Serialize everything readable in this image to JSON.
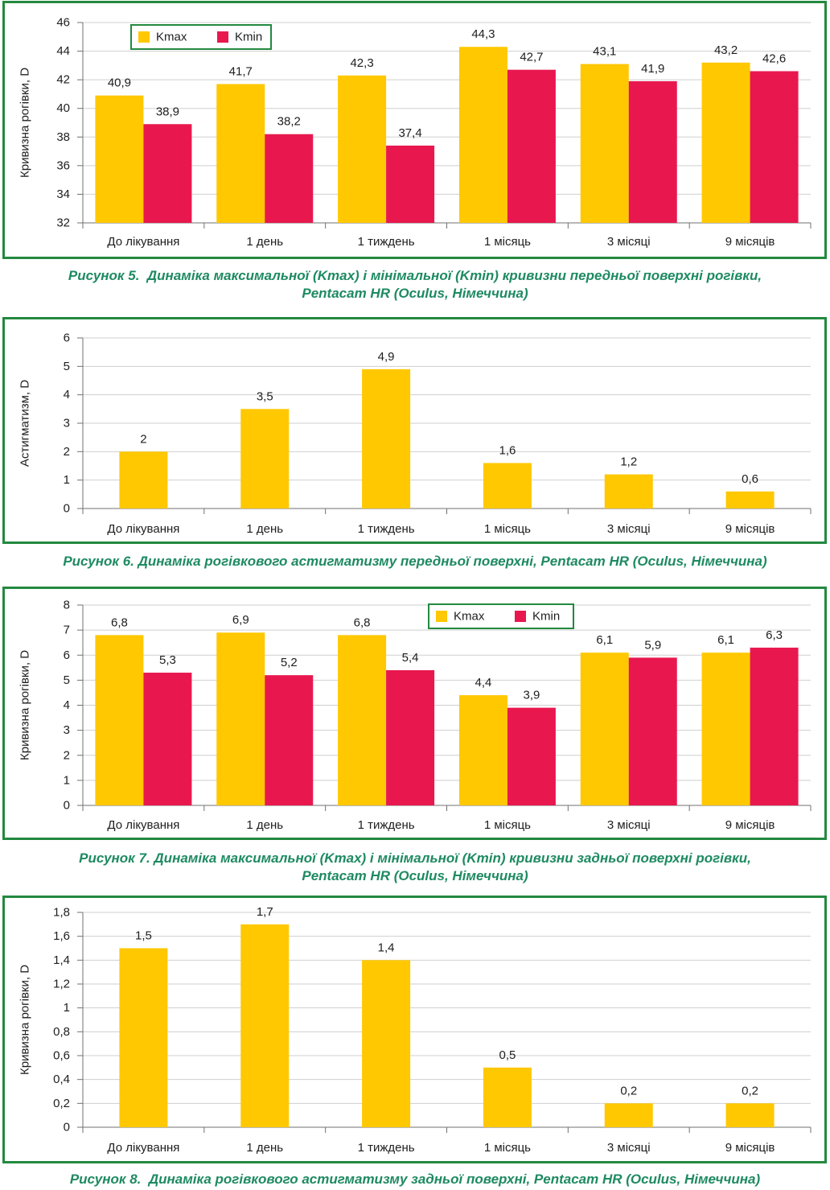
{
  "colors": {
    "frame": "#23893f",
    "caption": "#1e8a62",
    "kmax": "#ffc800",
    "kmin": "#e8184f"
  },
  "chart_data": [
    {
      "type": "bar",
      "categories": [
        "До лікування",
        "1 день",
        "1 тиждень",
        "1 місяць",
        "3 місяці",
        "9 місяців"
      ],
      "series": [
        {
          "name": "Kmax",
          "values": [
            40.9,
            41.7,
            42.3,
            44.3,
            43.1,
            43.2
          ],
          "color": "#ffc800"
        },
        {
          "name": "Kmin",
          "values": [
            38.9,
            38.2,
            37.4,
            42.7,
            41.9,
            42.6
          ],
          "color": "#e8184f"
        }
      ],
      "ylabel": "Кривизна рогівки, D",
      "ylim": [
        32,
        46
      ],
      "yticks": [
        32,
        34,
        36,
        38,
        40,
        42,
        44,
        46
      ],
      "grid": true,
      "legend": "top-left",
      "caption": [
        "Рисунок 5.  Динаміка максимальної (Kmax) і мінімальної (Kmin) кривизни передньої поверхні рогівки,",
        "Pentacam HR (Oculus, Німеччина)"
      ]
    },
    {
      "type": "bar",
      "categories": [
        "До лікування",
        "1 день",
        "1 тиждень",
        "1 місяць",
        "3 місяці",
        "9 місяців"
      ],
      "series": [
        {
          "values": [
            2,
            3.5,
            4.9,
            1.6,
            1.2,
            0.6
          ],
          "color": "#ffc800"
        }
      ],
      "ylabel": "Астигматизм, D",
      "ylim": [
        0,
        6
      ],
      "yticks": [
        0,
        1,
        2,
        3,
        4,
        5,
        6
      ],
      "grid": true,
      "caption": [
        "Рисунок 6. Динаміка рогівкового астигматизму передньої поверхні, Pentacam HR (Oculus, Німеччина)"
      ]
    },
    {
      "type": "bar",
      "categories": [
        "До лікування",
        "1 день",
        "1 тиждень",
        "1 місяць",
        "3 місяці",
        "9 місяців"
      ],
      "series": [
        {
          "name": "Kmax",
          "values": [
            6.8,
            6.9,
            6.8,
            4.4,
            6.1,
            6.1
          ],
          "color": "#ffc800"
        },
        {
          "name": "Kmin",
          "values": [
            5.3,
            5.2,
            5.4,
            3.9,
            5.9,
            6.3
          ],
          "color": "#e8184f"
        }
      ],
      "ylabel": "Кривизна рогівки, D",
      "ylim": [
        0,
        8
      ],
      "yticks": [
        0,
        1,
        2,
        3,
        4,
        5,
        6,
        7,
        8
      ],
      "grid": true,
      "legend": "top-center",
      "caption": [
        "Рисунок 7. Динаміка максимальної (Kmax) і мінімальної (Kmin) кривизни задньої поверхні рогівки,",
        "Pentacam HR (Oculus, Німеччина)"
      ]
    },
    {
      "type": "bar",
      "categories": [
        "До лікування",
        "1 день",
        "1 тиждень",
        "1 місяць",
        "3 місяці",
        "9 місяців"
      ],
      "series": [
        {
          "values": [
            1.5,
            1.7,
            1.4,
            0.5,
            0.2,
            0.2
          ],
          "color": "#ffc800"
        }
      ],
      "ylabel": "Кривизна рогівки, D",
      "ylim": [
        0,
        1.8
      ],
      "yticks": [
        0,
        0.2,
        0.4,
        0.6,
        0.8,
        1,
        1.2,
        1.4,
        1.6,
        1.8
      ],
      "grid": true,
      "caption": [
        "Рисунок 8.  Динаміка рогівкового астигматизму задньої поверхні, Pentacam HR (Oculus, Німеччина)"
      ]
    }
  ]
}
